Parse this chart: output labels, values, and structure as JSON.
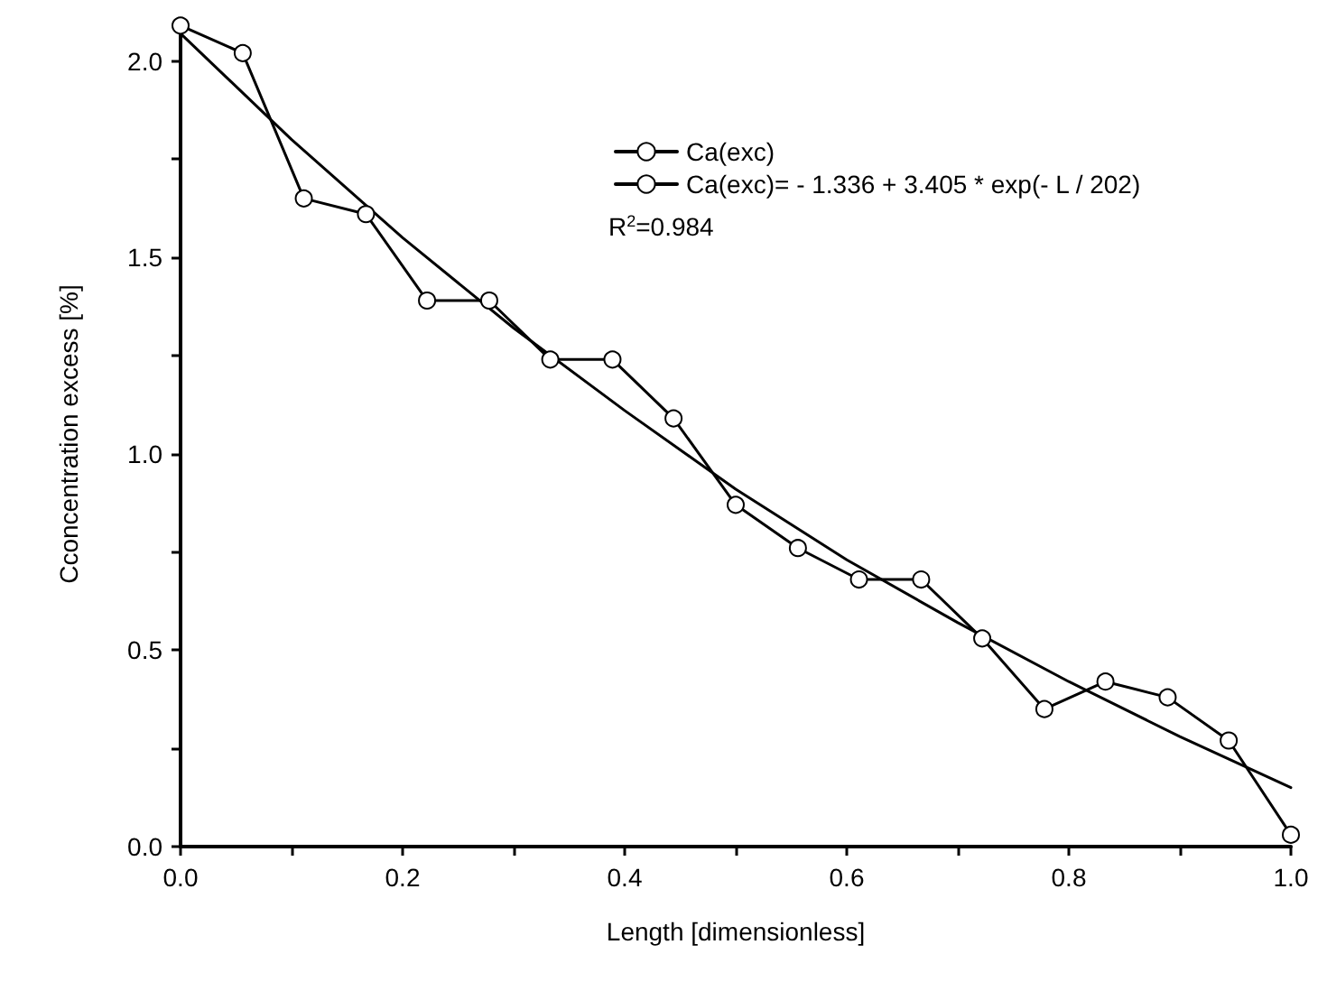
{
  "chart_data": {
    "type": "line",
    "xlabel": "Length [dimensionless]",
    "ylabel": "Cconcentration excess [%]",
    "xlim": [
      0,
      1
    ],
    "ylim": [
      0,
      2.1
    ],
    "xticks": [
      {
        "value": 0,
        "label": "0.0"
      },
      {
        "value": 0.1,
        "label": null
      },
      {
        "value": 0.2,
        "label": "0.2"
      },
      {
        "value": 0.3,
        "label": null
      },
      {
        "value": 0.4,
        "label": "0.4"
      },
      {
        "value": 0.5,
        "label": null
      },
      {
        "value": 0.6,
        "label": "0.6"
      },
      {
        "value": 0.7,
        "label": null
      },
      {
        "value": 0.8,
        "label": "0.8"
      },
      {
        "value": 0.9,
        "label": null
      },
      {
        "value": 1,
        "label": "1.0"
      }
    ],
    "yticks": [
      {
        "value": 0,
        "label": "0.0"
      },
      {
        "value": 0.25,
        "label": null
      },
      {
        "value": 0.5,
        "label": "0.5"
      },
      {
        "value": 0.75,
        "label": null
      },
      {
        "value": 1,
        "label": "1.0"
      },
      {
        "value": 1.25,
        "label": null
      },
      {
        "value": 1.5,
        "label": "1.5"
      },
      {
        "value": 1.75,
        "label": null
      },
      {
        "value": 2,
        "label": "2.0"
      }
    ],
    "x": [
      0,
      0.056,
      0.111,
      0.167,
      0.222,
      0.278,
      0.333,
      0.389,
      0.444,
      0.5,
      0.556,
      0.611,
      0.667,
      0.722,
      0.778,
      0.833,
      0.889,
      0.944,
      1
    ],
    "series": [
      {
        "name": "Ca(exc)",
        "color": "#000000",
        "marker": "circle",
        "values": [
          2.09,
          2.02,
          1.65,
          1.61,
          1.39,
          1.39,
          1.24,
          1.24,
          1.09,
          0.87,
          0.76,
          0.68,
          0.68,
          0.53,
          0.35,
          0.42,
          0.38,
          0.27,
          0.03
        ]
      },
      {
        "name": "Ca(exc)= - 1.336 + 3.405 * exp(- L / 202)",
        "color": "#000000",
        "marker": "none",
        "x": [
          0,
          0.1,
          0.2,
          0.3,
          0.4,
          0.5,
          0.6,
          0.7,
          0.8,
          0.9,
          1
        ],
        "values": [
          2.07,
          1.8,
          1.55,
          1.32,
          1.11,
          0.91,
          0.73,
          0.57,
          0.42,
          0.28,
          0.15
        ]
      }
    ],
    "annotations": [
      "R$^{2}$=0.984"
    ],
    "legend": "top right",
    "grid": false,
    "line_style": "solid"
  }
}
